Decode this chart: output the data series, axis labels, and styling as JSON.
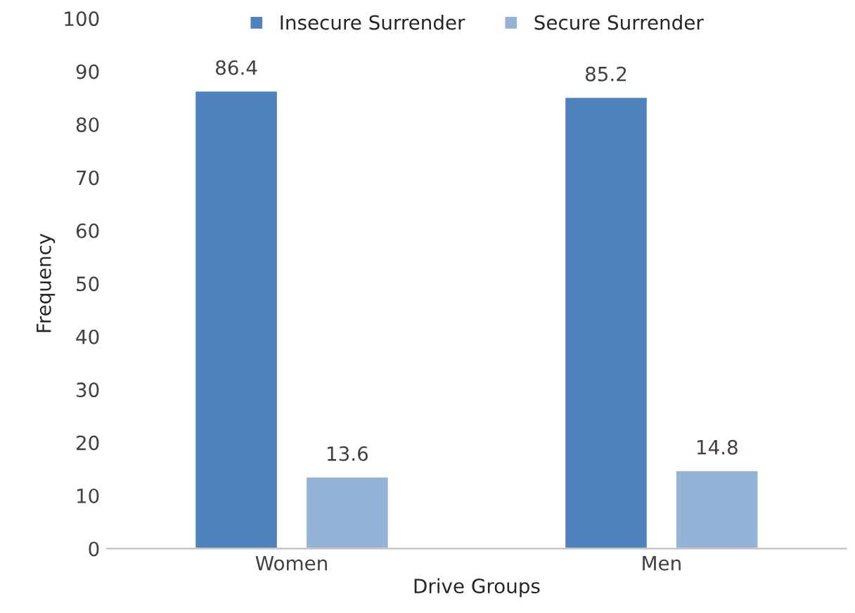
{
  "chart_data": {
    "type": "bar",
    "xlabel": "Drive Groups",
    "ylabel": "Frequency",
    "categories": [
      "Women",
      "Men"
    ],
    "series": [
      {
        "name": "Insecure Surrender",
        "color": "#4f81bd",
        "values": [
          86.4,
          85.2
        ]
      },
      {
        "name": "Secure Surrender",
        "color": "#95b3d7",
        "values": [
          13.6,
          14.8
        ]
      }
    ],
    "ylim": [
      0,
      100
    ],
    "yticks": [
      0,
      10,
      20,
      30,
      40,
      50,
      60,
      70,
      80,
      90,
      100
    ],
    "grid": false,
    "legend": "top",
    "data_labels": true
  }
}
